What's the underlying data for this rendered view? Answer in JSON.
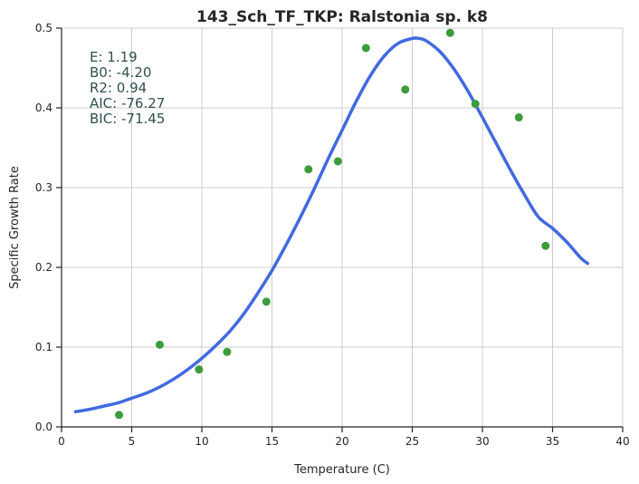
{
  "chart_data": {
    "type": "scatter",
    "title": "143_Sch_TF_TKP: Ralstonia sp. k8",
    "xlabel": "Temperature (C)",
    "ylabel": "Specific Growth Rate",
    "xlim": [
      0,
      40
    ],
    "ylim": [
      0,
      0.5
    ],
    "xticks": [
      "0",
      "5",
      "10",
      "15",
      "20",
      "25",
      "30",
      "35",
      "40"
    ],
    "yticks": [
      "0.0",
      "0.1",
      "0.2",
      "0.3",
      "0.4",
      "0.5"
    ],
    "grid": true,
    "annotations": [
      "E:  1.19",
      "B0:  -4.20",
      "R2:  0.94",
      "AIC: -76.27",
      "BIC: -71.45"
    ],
    "series": [
      {
        "kind": "points",
        "color": "#3c9c3c",
        "x": [
          4.1,
          7.0,
          9.8,
          11.8,
          14.6,
          17.6,
          19.7,
          21.7,
          24.5,
          27.7,
          29.5,
          32.6,
          34.5
        ],
        "y": [
          0.015,
          0.103,
          0.072,
          0.094,
          0.157,
          0.323,
          0.333,
          0.475,
          0.423,
          0.494,
          0.405,
          0.388,
          0.227
        ]
      },
      {
        "kind": "fitted-curve",
        "color": "#4169e1",
        "x": [
          1.0,
          2.0,
          3.0,
          4.0,
          5.0,
          6.0,
          7.0,
          8.0,
          9.0,
          10.0,
          11.0,
          12.0,
          13.0,
          14.0,
          15.0,
          16.0,
          17.0,
          18.0,
          19.0,
          20.0,
          21.0,
          22.0,
          23.0,
          24.0,
          25.0,
          25.5,
          26.0,
          27.0,
          28.0,
          29.0,
          30.0,
          31.0,
          32.0,
          33.0,
          34.0,
          35.0,
          36.0,
          37.0,
          37.5
        ],
        "y": [
          0.019,
          0.022,
          0.026,
          0.03,
          0.036,
          0.042,
          0.05,
          0.06,
          0.072,
          0.086,
          0.102,
          0.12,
          0.142,
          0.168,
          0.196,
          0.228,
          0.262,
          0.298,
          0.336,
          0.372,
          0.408,
          0.44,
          0.465,
          0.481,
          0.487,
          0.487,
          0.484,
          0.47,
          0.448,
          0.42,
          0.388,
          0.355,
          0.322,
          0.291,
          0.263,
          0.249,
          0.232,
          0.212,
          0.205
        ]
      }
    ]
  }
}
